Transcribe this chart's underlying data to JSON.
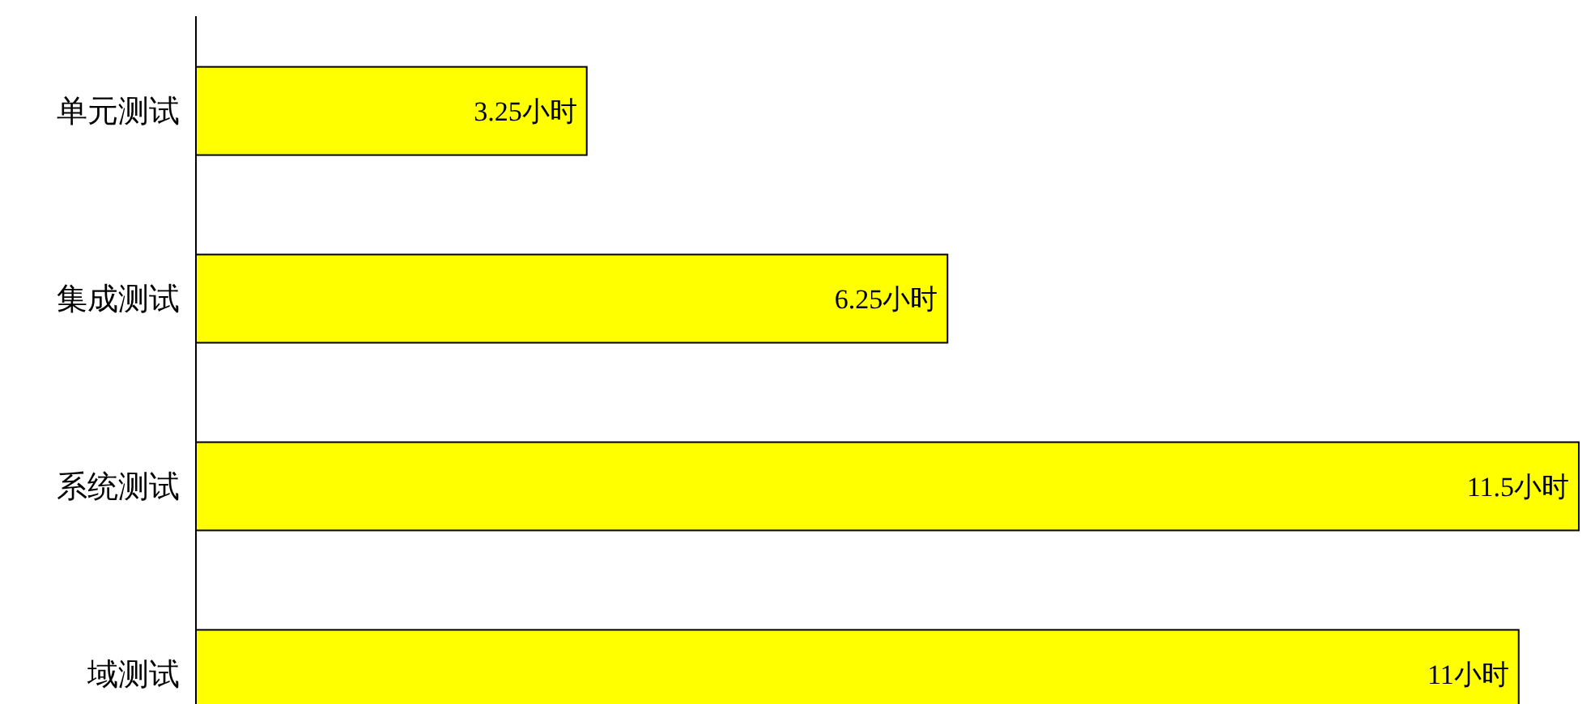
{
  "chart_data": {
    "type": "bar",
    "orientation": "horizontal",
    "categories": [
      "单元测试",
      "集成测试",
      "系统测试",
      "域测试"
    ],
    "values": [
      3.25,
      6.25,
      11.5,
      11
    ],
    "value_labels": [
      "3.25小时",
      "6.25小时",
      "11.5小时",
      "11小时"
    ],
    "color": "#ffff00"
  }
}
